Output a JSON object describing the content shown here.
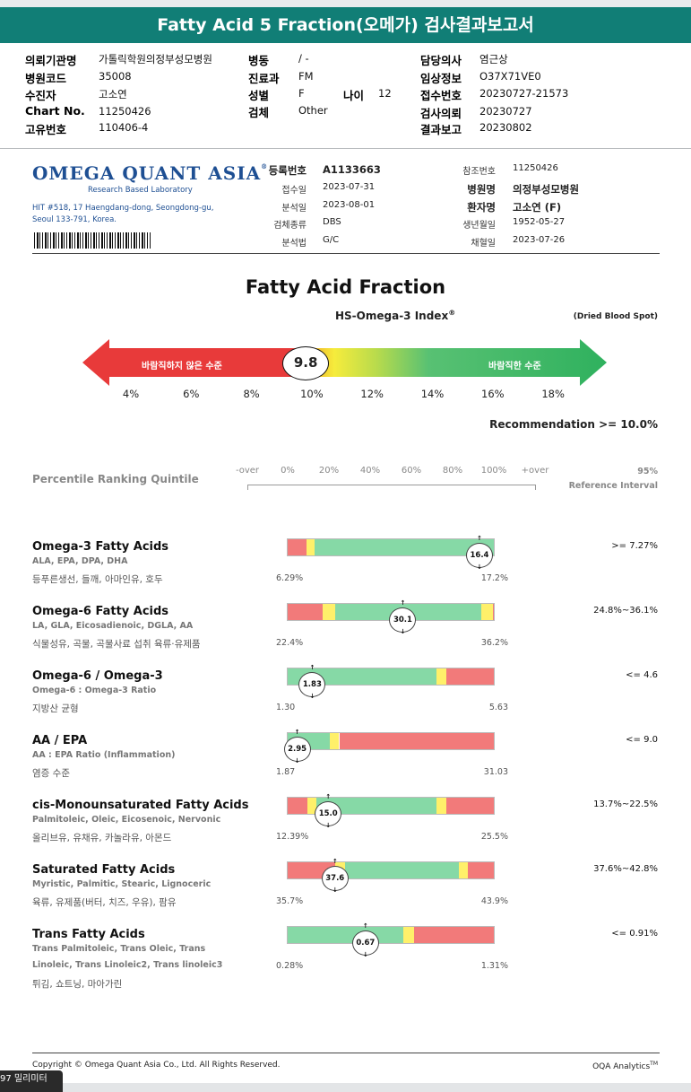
{
  "header": {
    "title": "Fatty Acid 5 Fraction(오메가) 검사결과보고서",
    "fields": [
      {
        "k": "의뢰기관명",
        "v": "가톨릭학원의정부성모병원"
      },
      {
        "k": "병원코드",
        "v": "35008"
      },
      {
        "k": "수진자",
        "v": "고소연"
      },
      {
        "k": "Chart No.",
        "v": "11250426"
      },
      {
        "k": "고유번호",
        "v": "110406-4"
      },
      {
        "k": "병동",
        "v": "/ -"
      },
      {
        "k": "진료과",
        "v": "FM"
      },
      {
        "k": "성별",
        "v": "F"
      },
      {
        "k": "검체",
        "v": "Other"
      },
      {
        "k": "나이",
        "v": "12"
      },
      {
        "k": "담당의사",
        "v": "염근상"
      },
      {
        "k": "임상정보",
        "v": "O37X71VE0"
      },
      {
        "k": "접수번호",
        "v": "20230727-21573"
      },
      {
        "k": "검사의뢰",
        "v": "20230727"
      },
      {
        "k": "결과보고",
        "v": "20230802"
      }
    ]
  },
  "lab": {
    "name": "OMEGA QUANT ASIA",
    "reg_mark": "®",
    "tagline": "Research Based Laboratory",
    "address1": "HIT #518, 17 Haengdang-dong, Seongdong-gu,",
    "address2": "Seoul 133-791, Korea."
  },
  "meta": {
    "left": [
      {
        "k": "등록번호",
        "v": "A1133663",
        "bold": true
      },
      {
        "k": "접수일",
        "v": "2023-07-31"
      },
      {
        "k": "분석일",
        "v": "2023-08-01"
      },
      {
        "k": "검체종류",
        "v": "DBS"
      },
      {
        "k": "분석법",
        "v": "G/C"
      }
    ],
    "right": [
      {
        "k": "참조번호",
        "v": "11250426"
      },
      {
        "k": "병원명",
        "v": "의정부성모병원",
        "bold": true
      },
      {
        "k": "환자명",
        "v": "고소연 (F)",
        "bold": true
      },
      {
        "k": "생년월일",
        "v": "1952-05-27"
      },
      {
        "k": "채혈일",
        "v": "2023-07-26"
      }
    ]
  },
  "index": {
    "title": "Fatty Acid Fraction",
    "subtitle": "HS-Omega-3 Index",
    "subtitle_reg": "®",
    "sample_type": "(Dried Blood Spot)",
    "value": "9.8",
    "value_num": 9.8,
    "low_label": "바람직하지 않은 수준",
    "high_label": "바람직한 수준",
    "scale": [
      "4%",
      "6%",
      "8%",
      "10%",
      "12%",
      "14%",
      "16%",
      "18%"
    ],
    "scale_values": [
      4,
      6,
      8,
      10,
      12,
      14,
      16,
      18
    ],
    "recommendation": "Recommendation  >= 10.0%"
  },
  "percentile": {
    "title": "Percentile Ranking Quintile",
    "scale": [
      "-over",
      "0%",
      "20%",
      "40%",
      "60%",
      "80%",
      "100%",
      "+over"
    ],
    "ref_header_1": "95%",
    "ref_header_2": "Reference Interval"
  },
  "colors": {
    "red": "#f27a7a",
    "yellow": "#fff06a",
    "green": "#86d9a6",
    "banner": "#117e76",
    "logo": "#1e4f93"
  },
  "rows": [
    {
      "name": "Omega-3 Fatty Acids",
      "sub": "ALA, EPA, DPA, DHA",
      "food": "등푸른생선, 들깨, 아마인유, 호두",
      "min": "6.29%",
      "max": "17.2%",
      "value": "16.4",
      "value_num": 16.4,
      "range_num": [
        6.29,
        17.2
      ],
      "ref": ">= 7.27%",
      "segments": [
        [
          "red",
          0,
          0.09
        ],
        [
          "yellow",
          0.09,
          0.13
        ],
        [
          "green",
          0.13,
          1.0
        ]
      ]
    },
    {
      "name": "Omega-6 Fatty Acids",
      "sub": "LA, GLA, Eicosadienoic, DGLA, AA",
      "food": "식물성유, 곡물, 곡물사료 섭취 육류·유제품",
      "min": "22.4%",
      "max": "36.2%",
      "value": "30.1",
      "value_num": 30.1,
      "range_num": [
        22.4,
        36.2
      ],
      "ref": "24.8%~36.1%",
      "segments": [
        [
          "red",
          0,
          0.17
        ],
        [
          "yellow",
          0.17,
          0.23
        ],
        [
          "green",
          0.23,
          0.94
        ],
        [
          "yellow",
          0.94,
          0.995
        ],
        [
          "red",
          0.995,
          1.0
        ]
      ]
    },
    {
      "name": "Omega-6 / Omega-3",
      "sub": "Omega-6 : Omega-3 Ratio",
      "food": "지방산 균형",
      "min": "1.30",
      "max": "5.63",
      "value": "1.83",
      "value_num": 1.83,
      "range_num": [
        1.3,
        5.63
      ],
      "ref": "<= 4.6",
      "segments": [
        [
          "green",
          0,
          0.72
        ],
        [
          "yellow",
          0.72,
          0.77
        ],
        [
          "red",
          0.77,
          1.0
        ]
      ]
    },
    {
      "name": "AA / EPA",
      "sub": "AA : EPA Ratio (Inflammation)",
      "food": "염증 수준",
      "min": "1.87",
      "max": "31.03",
      "value": "2.95",
      "value_num": 2.95,
      "range_num": [
        1.87,
        31.03
      ],
      "ref": "<= 9.0",
      "segments": [
        [
          "green",
          0,
          0.205
        ],
        [
          "yellow",
          0.205,
          0.25
        ],
        [
          "red",
          0.25,
          1.0
        ]
      ]
    },
    {
      "name": "cis-Monounsaturated Fatty Acids",
      "sub": "Palmitoleic, Oleic, Eicosenoic, Nervonic",
      "food": "올리브유, 유채유, 카놀라유, 아몬드",
      "min": "12.39%",
      "max": "25.5%",
      "value": "15.0",
      "value_num": 15.0,
      "range_num": [
        12.39,
        25.5
      ],
      "ref": "13.7%~22.5%",
      "segments": [
        [
          "red",
          0,
          0.095
        ],
        [
          "yellow",
          0.095,
          0.14
        ],
        [
          "green",
          0.14,
          0.72
        ],
        [
          "yellow",
          0.72,
          0.77
        ],
        [
          "red",
          0.77,
          1.0
        ]
      ]
    },
    {
      "name": "Saturated Fatty Acids",
      "sub": "Myristic, Palmitic, Stearic, Lignoceric",
      "food": "육류, 유제품(버터, 치즈, 우유), 팜유",
      "min": "35.7%",
      "max": "43.9%",
      "value": "37.6",
      "value_num": 37.6,
      "range_num": [
        35.7,
        43.9
      ],
      "ref": "37.6%~42.8%",
      "segments": [
        [
          "red",
          0,
          0.23
        ],
        [
          "yellow",
          0.23,
          0.28
        ],
        [
          "green",
          0.28,
          0.83
        ],
        [
          "yellow",
          0.83,
          0.875
        ],
        [
          "red",
          0.875,
          1.0
        ]
      ]
    },
    {
      "name": "Trans Fatty Acids",
      "sub": "Trans Palmitoleic, Trans Oleic, Trans",
      "sub2": "Linoleic, Trans Linoleic2, Trans linoleic3",
      "food": "튀김, 쇼트닝, 마아가린",
      "min": "0.28%",
      "max": "1.31%",
      "value": "0.67",
      "value_num": 0.67,
      "range_num": [
        0.28,
        1.31
      ],
      "ref": "<= 0.91%",
      "segments": [
        [
          "green",
          0,
          0.56
        ],
        [
          "yellow",
          0.56,
          0.615
        ],
        [
          "red",
          0.615,
          1.0
        ]
      ]
    }
  ],
  "footer": {
    "copyright": "Copyright © Omega Quant Asia Co., Ltd.  All Rights Reserved.",
    "brand": "OQA Analytics",
    "brand_tm": "TM"
  },
  "ruler": {
    "label": "97 밀리미터"
  }
}
